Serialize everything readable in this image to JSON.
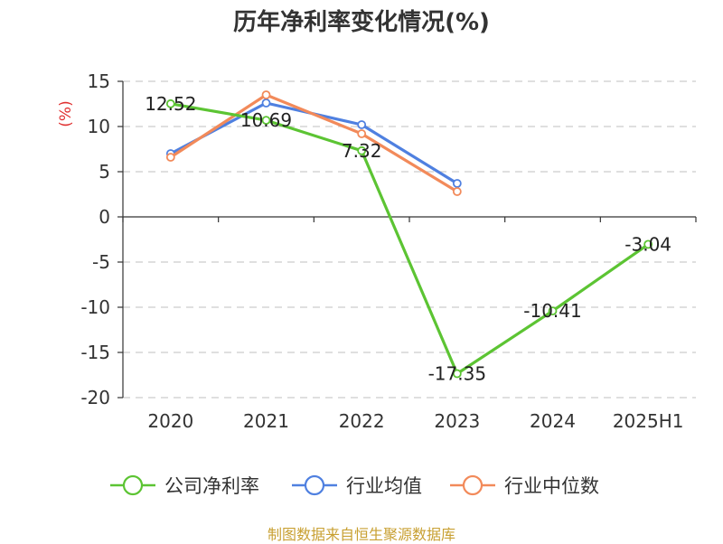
{
  "title": "历年净利率变化情况(%)",
  "source": "制图数据来自恒生聚源数据库",
  "chart_data": {
    "type": "line",
    "title": "历年净利率变化情况(%)",
    "ylabel": "(%)",
    "xlabel": "",
    "categories": [
      "2020",
      "2021",
      "2022",
      "2023",
      "2024",
      "2025H1"
    ],
    "ylim": [
      -20,
      15
    ],
    "yticks": [
      15,
      10,
      5,
      0,
      -5,
      -10,
      -15,
      -20
    ],
    "grid": true,
    "legend_position": "bottom",
    "series": [
      {
        "name": "公司净利率",
        "color": "#5cc433",
        "values": [
          12.52,
          10.69,
          7.32,
          -17.35,
          -10.41,
          -3.04
        ],
        "labels": [
          "12.52",
          "10.69",
          "7.32",
          "-17.35",
          "-10.41",
          "-3.04"
        ]
      },
      {
        "name": "行业均值",
        "color": "#4f80e0",
        "values": [
          7.0,
          12.6,
          10.2,
          3.7,
          null,
          null
        ]
      },
      {
        "name": "行业中位数",
        "color": "#f28a5a",
        "values": [
          6.6,
          13.5,
          9.2,
          2.8,
          null,
          null
        ]
      }
    ]
  }
}
